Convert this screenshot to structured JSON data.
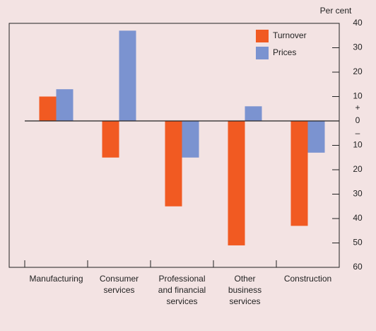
{
  "chart_data": {
    "type": "bar",
    "unit_label": "Per cent",
    "categories": [
      "Manufacturing",
      "Consumer\nservices",
      "Professional\nand financial\nservices",
      "Other\nbusiness\nservices",
      "Construction"
    ],
    "series": [
      {
        "name": "Turnover",
        "color": "#f15a22",
        "values": [
          10,
          -15,
          -35,
          -51,
          -43
        ]
      },
      {
        "name": "Prices",
        "color": "#7b93d0",
        "values": [
          13,
          37,
          -15,
          6,
          -13
        ]
      }
    ],
    "ylim": [
      -60,
      40
    ],
    "yticks": [
      40,
      30,
      20,
      10,
      0,
      {
        "value": -10,
        "label": "10"
      },
      {
        "value": -20,
        "label": "20"
      },
      {
        "value": -30,
        "label": "30"
      },
      {
        "value": -40,
        "label": "40"
      },
      {
        "value": -50,
        "label": "50"
      },
      {
        "value": -60,
        "label": "60"
      }
    ],
    "y_sign_labels": [
      "+",
      "–"
    ],
    "legend": "top-right"
  }
}
